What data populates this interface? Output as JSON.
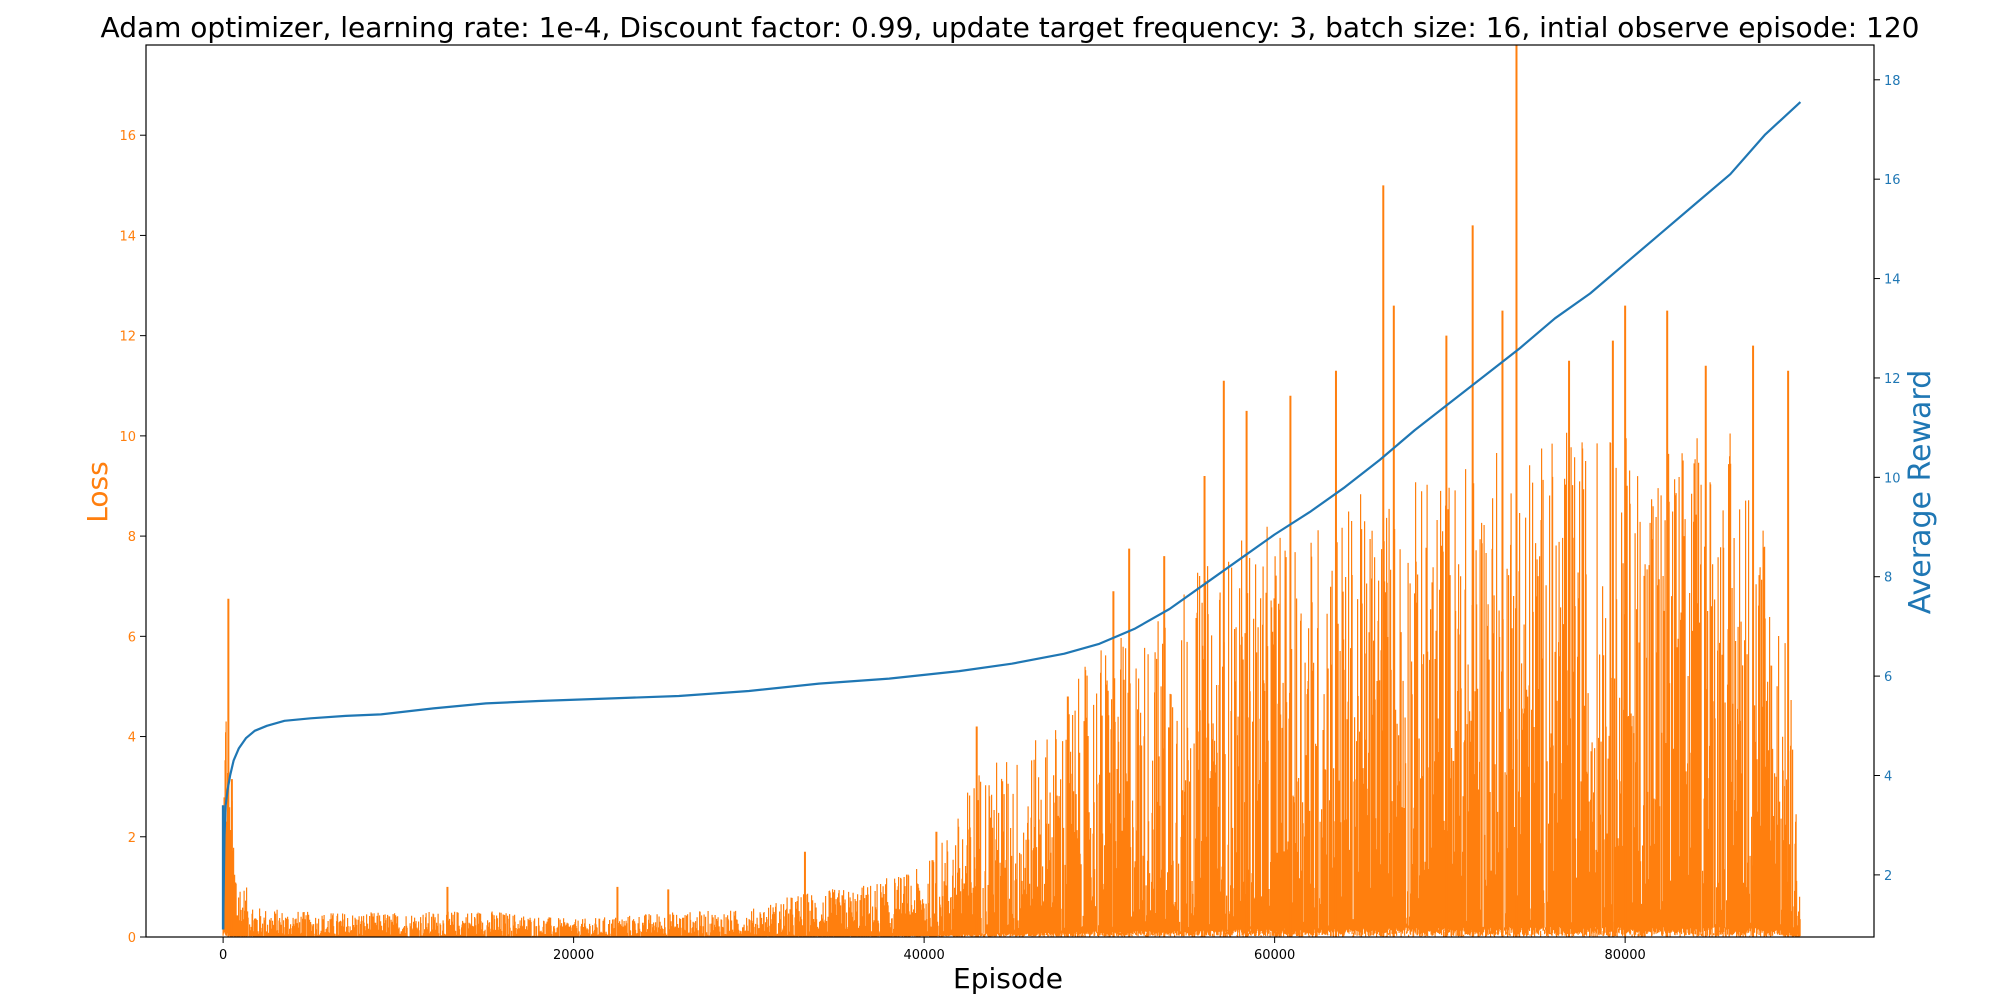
{
  "chart_data": {
    "type": "line",
    "title": "Adam optimizer, learning rate: 1e-4, Discount factor: 0.99, update target frequency: 3, batch size: 16, intial observe episode: 120",
    "xlabel": "Episode",
    "ylabel_left": "Loss",
    "ylabel_right": "Average Reward",
    "xlim": [
      -4400,
      94200
    ],
    "ylim_left": [
      0,
      17.8
    ],
    "ylim_right": [
      0.75,
      18.7
    ],
    "x_ticks": [
      0,
      20000,
      40000,
      60000,
      80000
    ],
    "y_ticks_left": [
      0,
      2,
      4,
      6,
      8,
      10,
      12,
      14,
      16
    ],
    "y_ticks_right": [
      2,
      4,
      6,
      8,
      10,
      12,
      14,
      16,
      18
    ],
    "grid": false,
    "colors": {
      "loss": "#ff7f0e",
      "reward": "#1f77b4"
    },
    "series": [
      {
        "axis": "right",
        "x": [
          0,
          80,
          150,
          250,
          400,
          600,
          900,
          1300,
          1800,
          2500,
          3500,
          5000,
          7000,
          9000,
          12000,
          15000,
          18000,
          22000,
          26000,
          30000,
          34000,
          38000,
          42000,
          45000,
          48000,
          50000,
          52000,
          54000,
          56000,
          58000,
          60000,
          62000,
          64000,
          66000,
          68000,
          70000,
          72000,
          74000,
          76000,
          78000,
          80000,
          82000,
          84000,
          86000,
          88000,
          90000
        ],
        "values": [
          0.9,
          2.8,
          3.4,
          3.7,
          4.0,
          4.3,
          4.55,
          4.75,
          4.9,
          5.0,
          5.1,
          5.15,
          5.2,
          5.23,
          5.35,
          5.45,
          5.5,
          5.55,
          5.6,
          5.7,
          5.85,
          5.95,
          6.1,
          6.25,
          6.45,
          6.65,
          6.95,
          7.35,
          7.85,
          8.35,
          8.85,
          9.3,
          9.8,
          10.35,
          10.95,
          11.5,
          12.05,
          12.6,
          13.2,
          13.7,
          14.3,
          14.9,
          15.5,
          16.1,
          16.9,
          17.55
        ]
      }
    ],
    "loss_series": {
      "axis": "left",
      "x_range": [
        0,
        90000
      ],
      "envelope_x": [
        0,
        150,
        300,
        500,
        700,
        1000,
        2000,
        5000,
        10000,
        15000,
        20000,
        25000,
        30000,
        33000,
        36000,
        40000,
        42000,
        43000,
        46000,
        48000,
        50000,
        52000,
        55000,
        58000,
        62000,
        66000,
        70000,
        74000,
        78000,
        82000,
        86000,
        88000,
        89500,
        90000
      ],
      "envelope_values": [
        4.2,
        6.75,
        3.0,
        2.9,
        2.0,
        1.2,
        0.6,
        0.5,
        0.5,
        0.55,
        0.35,
        0.5,
        0.55,
        0.9,
        1.0,
        1.4,
        2.5,
        3.5,
        3.8,
        4.6,
        6.0,
        6.0,
        7.2,
        8.0,
        8.5,
        9.0,
        9.5,
        10.0,
        10.2,
        10.0,
        10.2,
        9.0,
        5.0,
        1.0
      ],
      "spikes": [
        {
          "x": 300,
          "y": 6.75
        },
        {
          "x": 500,
          "y": 3.15
        },
        {
          "x": 12800,
          "y": 1.0
        },
        {
          "x": 22500,
          "y": 1.0
        },
        {
          "x": 25400,
          "y": 0.95
        },
        {
          "x": 33200,
          "y": 1.7
        },
        {
          "x": 40700,
          "y": 2.1
        },
        {
          "x": 43000,
          "y": 4.2
        },
        {
          "x": 48200,
          "y": 4.8
        },
        {
          "x": 50800,
          "y": 6.9
        },
        {
          "x": 51700,
          "y": 7.75
        },
        {
          "x": 53700,
          "y": 7.6
        },
        {
          "x": 56000,
          "y": 9.2
        },
        {
          "x": 57100,
          "y": 11.1
        },
        {
          "x": 58400,
          "y": 10.5
        },
        {
          "x": 60900,
          "y": 10.8
        },
        {
          "x": 63500,
          "y": 11.3
        },
        {
          "x": 66200,
          "y": 15.0
        },
        {
          "x": 66800,
          "y": 12.6
        },
        {
          "x": 69800,
          "y": 12.0
        },
        {
          "x": 71300,
          "y": 14.2
        },
        {
          "x": 73000,
          "y": 12.5
        },
        {
          "x": 73800,
          "y": 17.8
        },
        {
          "x": 76800,
          "y": 11.5
        },
        {
          "x": 79300,
          "y": 11.9
        },
        {
          "x": 80000,
          "y": 12.6
        },
        {
          "x": 82400,
          "y": 12.5
        },
        {
          "x": 84600,
          "y": 11.4
        },
        {
          "x": 87300,
          "y": 11.8
        },
        {
          "x": 89300,
          "y": 11.3
        }
      ]
    }
  }
}
